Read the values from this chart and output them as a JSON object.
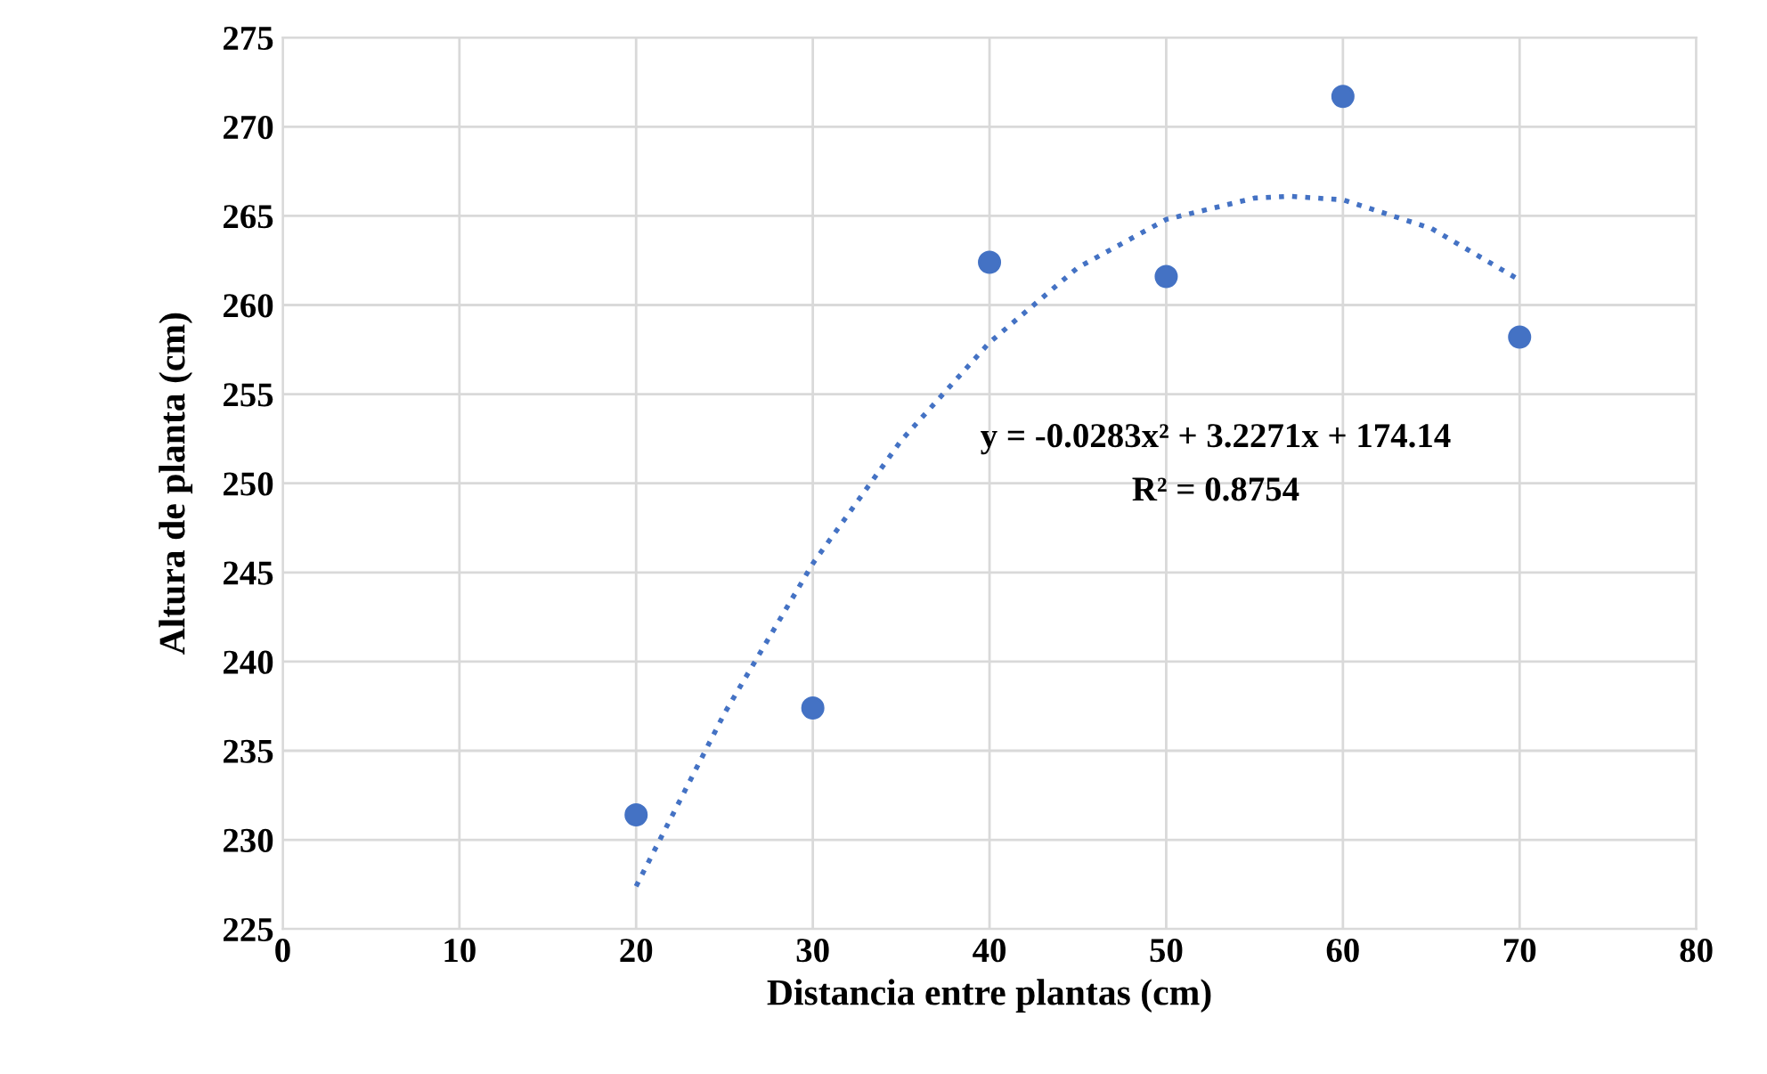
{
  "chart_data": {
    "type": "scatter",
    "xlabel": "Distancia entre plantas (cm)",
    "ylabel": "Altura de planta (cm)",
    "xlim": [
      0,
      80
    ],
    "xticks": [
      0,
      10,
      20,
      30,
      40,
      50,
      60,
      70,
      80
    ],
    "ylim": [
      225,
      275
    ],
    "yticks": [
      225,
      230,
      235,
      240,
      245,
      250,
      255,
      260,
      265,
      270,
      275
    ],
    "grid": true,
    "series": [
      {
        "marker": "circle",
        "color": "#4472c4",
        "x": [
          20,
          30,
          40,
          50,
          60,
          70
        ],
        "values": [
          231.4,
          237.4,
          262.4,
          261.6,
          271.7,
          258.2
        ]
      },
      {
        "type": "line",
        "color": "#4472c4",
        "line_style": "dotted",
        "marker": "none",
        "x": [
          20,
          25,
          30,
          35,
          40,
          45,
          50,
          55,
          57,
          60,
          65,
          70
        ],
        "values": [
          227.4,
          237.1,
          245.5,
          252.4,
          257.9,
          262.1,
          264.8,
          266.0,
          266.1,
          265.9,
          264.3,
          261.4
        ]
      }
    ],
    "annotations": [
      "y = -0.0283x² + 3.2271x + 174.14",
      "R² = 0.8754"
    ]
  }
}
